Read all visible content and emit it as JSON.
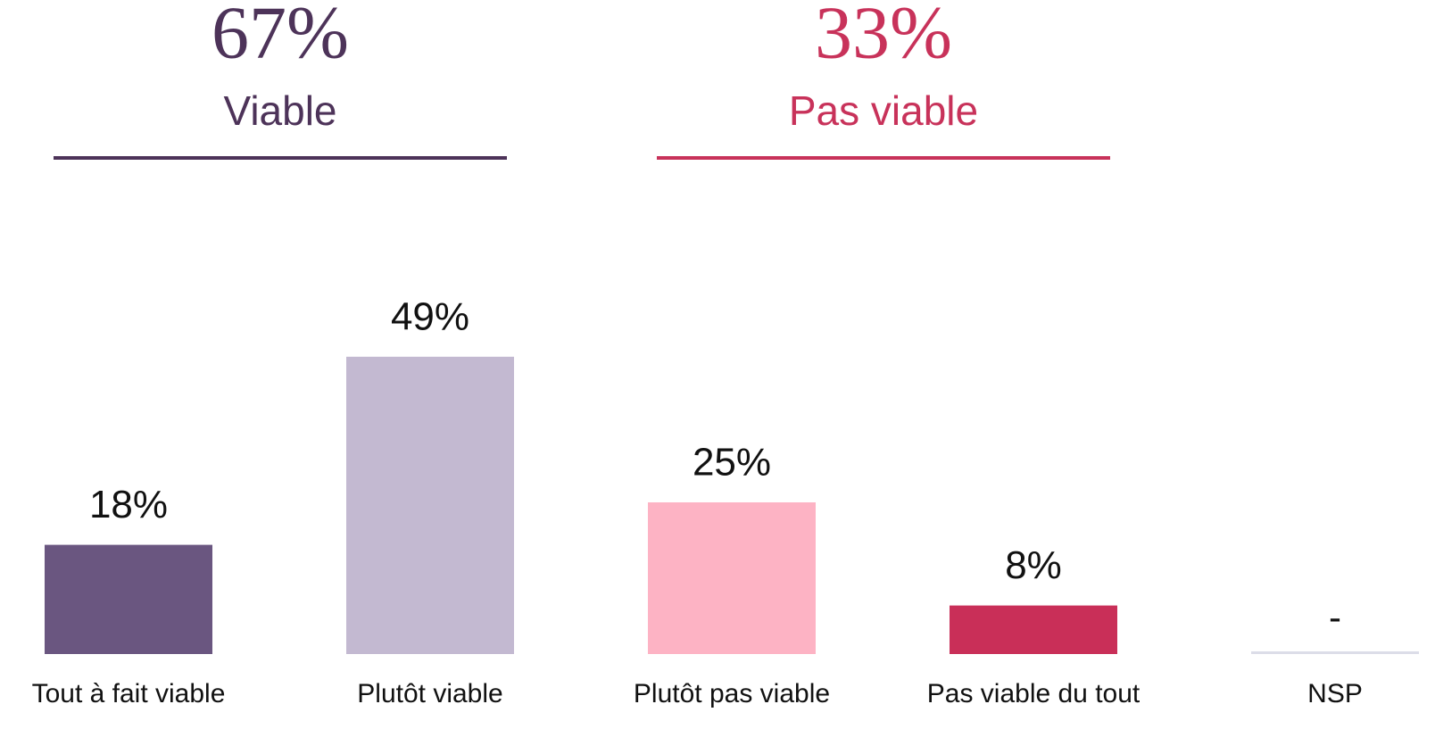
{
  "chart_data": {
    "type": "bar",
    "summary": [
      {
        "label": "67%",
        "name": "Viable",
        "color": "#4d3359"
      },
      {
        "label": "33%",
        "name": "Pas viable",
        "color": "#c8325a"
      }
    ],
    "categories": [
      "Tout à fait viable",
      "Plutôt viable",
      "Plutôt pas viable",
      "Pas viable du tout",
      "NSP"
    ],
    "values": [
      18,
      49,
      25,
      8,
      null
    ],
    "value_labels": [
      "18%",
      "49%",
      "25%",
      "8%",
      "-"
    ],
    "colors": [
      "#6a5680",
      "#c3b9d1",
      "#fdb3c4",
      "#c92f58",
      "#dcdde8"
    ],
    "ylim": [
      0,
      100
    ]
  }
}
